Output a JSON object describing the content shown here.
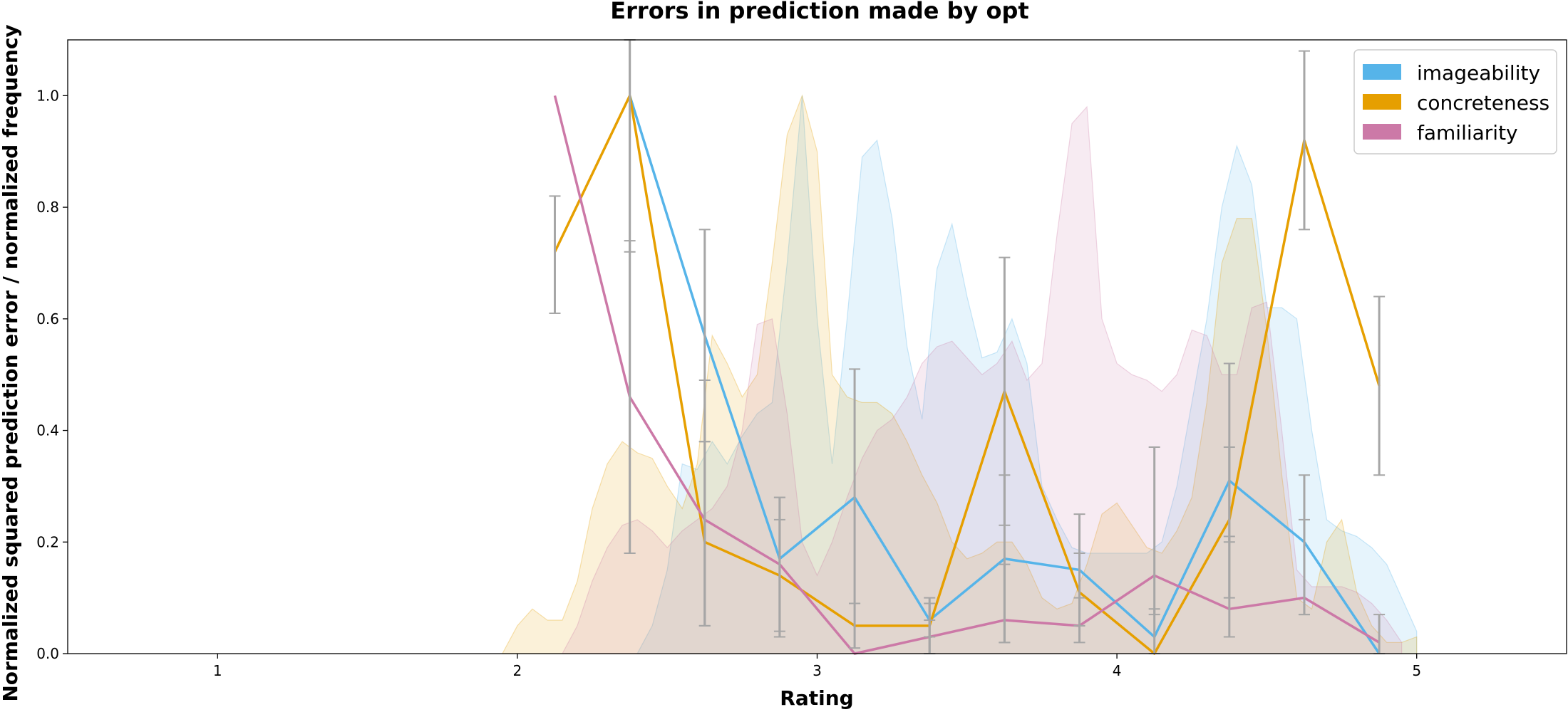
{
  "chart_data": {
    "type": "line",
    "title": "Errors in prediction made by opt",
    "xlabel": "Rating",
    "ylabel": "Normalized squared prediction error / normalized frequency",
    "xlim": [
      0.5,
      5.5
    ],
    "ylim": [
      0,
      1.1
    ],
    "xticks": [
      "1",
      "2",
      "3",
      "4",
      "5"
    ],
    "yticks": [
      "0.0",
      "0.2",
      "0.4",
      "0.6",
      "0.8",
      "1.0"
    ],
    "legend_position": "top-right",
    "grid": false,
    "error_color": "#a6a6a6",
    "series": [
      {
        "name": "imageability",
        "color": "#56b4e9",
        "x": [
          2.375,
          2.625,
          2.875,
          3.125,
          3.375,
          3.625,
          3.875,
          4.125,
          4.375,
          4.625,
          4.875
        ],
        "values": [
          1.0,
          0.57,
          0.17,
          0.28,
          0.06,
          0.17,
          0.15,
          0.03,
          0.31,
          0.2,
          0.0
        ],
        "err_low": [
          0.72,
          0.38,
          0.04,
          0.09,
          0.03,
          0.02,
          0.05,
          0.0,
          0.2,
          0.07,
          0.0
        ],
        "err_high": [
          1.1,
          0.76,
          0.28,
          0.51,
          0.09,
          0.32,
          0.25,
          0.08,
          0.52,
          0.32,
          0.0
        ],
        "density": [
          [
            2.4,
            0.0
          ],
          [
            2.45,
            0.05
          ],
          [
            2.5,
            0.15
          ],
          [
            2.55,
            0.34
          ],
          [
            2.6,
            0.33
          ],
          [
            2.65,
            0.38
          ],
          [
            2.7,
            0.34
          ],
          [
            2.75,
            0.39
          ],
          [
            2.8,
            0.43
          ],
          [
            2.85,
            0.45
          ],
          [
            2.9,
            0.7
          ],
          [
            2.95,
            1.0
          ],
          [
            3.0,
            0.6
          ],
          [
            3.05,
            0.34
          ],
          [
            3.1,
            0.6
          ],
          [
            3.15,
            0.89
          ],
          [
            3.2,
            0.92
          ],
          [
            3.25,
            0.78
          ],
          [
            3.3,
            0.55
          ],
          [
            3.35,
            0.42
          ],
          [
            3.4,
            0.69
          ],
          [
            3.45,
            0.77
          ],
          [
            3.5,
            0.64
          ],
          [
            3.55,
            0.53
          ],
          [
            3.6,
            0.54
          ],
          [
            3.65,
            0.6
          ],
          [
            3.7,
            0.52
          ],
          [
            3.75,
            0.3
          ],
          [
            3.8,
            0.24
          ],
          [
            3.85,
            0.19
          ],
          [
            3.9,
            0.18
          ],
          [
            3.95,
            0.18
          ],
          [
            4.0,
            0.18
          ],
          [
            4.05,
            0.18
          ],
          [
            4.1,
            0.18
          ],
          [
            4.15,
            0.2
          ],
          [
            4.2,
            0.3
          ],
          [
            4.25,
            0.45
          ],
          [
            4.3,
            0.6
          ],
          [
            4.35,
            0.8
          ],
          [
            4.4,
            0.91
          ],
          [
            4.45,
            0.84
          ],
          [
            4.5,
            0.62
          ],
          [
            4.55,
            0.62
          ],
          [
            4.6,
            0.6
          ],
          [
            4.65,
            0.4
          ],
          [
            4.7,
            0.24
          ],
          [
            4.75,
            0.22
          ],
          [
            4.8,
            0.21
          ],
          [
            4.85,
            0.19
          ],
          [
            4.9,
            0.16
          ],
          [
            4.95,
            0.1
          ],
          [
            5.0,
            0.04
          ]
        ]
      },
      {
        "name": "concreteness",
        "color": "#e69f00",
        "x": [
          2.125,
          2.375,
          2.625,
          2.875,
          3.125,
          3.375,
          3.625,
          3.875,
          4.125,
          4.375,
          4.625,
          4.875
        ],
        "values": [
          0.72,
          1.0,
          0.2,
          0.14,
          0.05,
          0.05,
          0.47,
          0.11,
          0.0,
          0.24,
          0.92,
          0.48
        ],
        "err_low": [
          0.61,
          0.18,
          0.05,
          0.03,
          0.01,
          0.0,
          0.23,
          0.05,
          0.0,
          0.1,
          0.76,
          0.32
        ],
        "err_high": [
          0.82,
          1.1,
          0.49,
          0.24,
          0.09,
          0.1,
          0.71,
          0.18,
          0.0,
          0.37,
          1.08,
          0.64
        ],
        "density": [
          [
            1.95,
            0.0
          ],
          [
            2.0,
            0.05
          ],
          [
            2.05,
            0.08
          ],
          [
            2.1,
            0.06
          ],
          [
            2.15,
            0.06
          ],
          [
            2.2,
            0.13
          ],
          [
            2.25,
            0.26
          ],
          [
            2.3,
            0.34
          ],
          [
            2.35,
            0.38
          ],
          [
            2.4,
            0.36
          ],
          [
            2.45,
            0.35
          ],
          [
            2.5,
            0.3
          ],
          [
            2.55,
            0.26
          ],
          [
            2.6,
            0.34
          ],
          [
            2.65,
            0.57
          ],
          [
            2.7,
            0.52
          ],
          [
            2.75,
            0.46
          ],
          [
            2.8,
            0.5
          ],
          [
            2.85,
            0.7
          ],
          [
            2.9,
            0.93
          ],
          [
            2.95,
            1.0
          ],
          [
            3.0,
            0.9
          ],
          [
            3.05,
            0.5
          ],
          [
            3.1,
            0.46
          ],
          [
            3.15,
            0.45
          ],
          [
            3.2,
            0.45
          ],
          [
            3.25,
            0.43
          ],
          [
            3.3,
            0.38
          ],
          [
            3.35,
            0.32
          ],
          [
            3.4,
            0.27
          ],
          [
            3.45,
            0.2
          ],
          [
            3.5,
            0.17
          ],
          [
            3.55,
            0.18
          ],
          [
            3.6,
            0.2
          ],
          [
            3.65,
            0.2
          ],
          [
            3.7,
            0.16
          ],
          [
            3.75,
            0.1
          ],
          [
            3.8,
            0.08
          ],
          [
            3.85,
            0.09
          ],
          [
            3.9,
            0.16
          ],
          [
            3.95,
            0.25
          ],
          [
            4.0,
            0.27
          ],
          [
            4.05,
            0.23
          ],
          [
            4.1,
            0.19
          ],
          [
            4.15,
            0.18
          ],
          [
            4.2,
            0.22
          ],
          [
            4.25,
            0.28
          ],
          [
            4.3,
            0.45
          ],
          [
            4.35,
            0.7
          ],
          [
            4.4,
            0.78
          ],
          [
            4.45,
            0.78
          ],
          [
            4.5,
            0.58
          ],
          [
            4.55,
            0.32
          ],
          [
            4.6,
            0.1
          ],
          [
            4.65,
            0.08
          ],
          [
            4.7,
            0.2
          ],
          [
            4.75,
            0.24
          ],
          [
            4.8,
            0.11
          ],
          [
            4.85,
            0.05
          ],
          [
            4.9,
            0.02
          ],
          [
            4.95,
            0.02
          ],
          [
            5.0,
            0.03
          ]
        ]
      },
      {
        "name": "familiarity",
        "color": "#cc79a7",
        "x": [
          2.125,
          2.375,
          2.625,
          2.875,
          3.125,
          3.375,
          3.625,
          3.875,
          4.125,
          4.375,
          4.625,
          4.875
        ],
        "values": [
          1.0,
          0.46,
          0.24,
          0.16,
          0.0,
          0.03,
          0.06,
          0.05,
          0.14,
          0.08,
          0.1,
          0.02
        ],
        "err_low": [
          1.0,
          0.18,
          0.05,
          0.03,
          0.0,
          0.0,
          0.02,
          0.02,
          0.07,
          0.03,
          0.07,
          0.0
        ],
        "err_high": [
          1.0,
          0.74,
          0.38,
          0.28,
          0.0,
          0.06,
          0.16,
          0.1,
          0.37,
          0.21,
          0.24,
          0.07
        ],
        "density": [
          [
            2.15,
            0.0
          ],
          [
            2.2,
            0.05
          ],
          [
            2.25,
            0.13
          ],
          [
            2.3,
            0.19
          ],
          [
            2.35,
            0.23
          ],
          [
            2.4,
            0.24
          ],
          [
            2.45,
            0.22
          ],
          [
            2.5,
            0.19
          ],
          [
            2.55,
            0.22
          ],
          [
            2.6,
            0.24
          ],
          [
            2.65,
            0.26
          ],
          [
            2.7,
            0.3
          ],
          [
            2.75,
            0.4
          ],
          [
            2.8,
            0.59
          ],
          [
            2.85,
            0.6
          ],
          [
            2.9,
            0.43
          ],
          [
            2.95,
            0.2
          ],
          [
            3.0,
            0.14
          ],
          [
            3.05,
            0.2
          ],
          [
            3.1,
            0.28
          ],
          [
            3.15,
            0.35
          ],
          [
            3.2,
            0.4
          ],
          [
            3.25,
            0.42
          ],
          [
            3.3,
            0.46
          ],
          [
            3.35,
            0.52
          ],
          [
            3.4,
            0.55
          ],
          [
            3.45,
            0.56
          ],
          [
            3.5,
            0.53
          ],
          [
            3.55,
            0.5
          ],
          [
            3.6,
            0.52
          ],
          [
            3.65,
            0.56
          ],
          [
            3.7,
            0.49
          ],
          [
            3.75,
            0.52
          ],
          [
            3.8,
            0.75
          ],
          [
            3.85,
            0.95
          ],
          [
            3.9,
            0.98
          ],
          [
            3.95,
            0.6
          ],
          [
            4.0,
            0.52
          ],
          [
            4.05,
            0.5
          ],
          [
            4.1,
            0.49
          ],
          [
            4.15,
            0.47
          ],
          [
            4.2,
            0.5
          ],
          [
            4.25,
            0.58
          ],
          [
            4.3,
            0.57
          ],
          [
            4.35,
            0.5
          ],
          [
            4.4,
            0.5
          ],
          [
            4.45,
            0.62
          ],
          [
            4.5,
            0.63
          ],
          [
            4.55,
            0.4
          ],
          [
            4.6,
            0.15
          ],
          [
            4.65,
            0.12
          ],
          [
            4.7,
            0.12
          ],
          [
            4.75,
            0.12
          ],
          [
            4.8,
            0.11
          ],
          [
            4.85,
            0.09
          ],
          [
            4.9,
            0.06
          ],
          [
            4.95,
            0.02
          ]
        ]
      }
    ]
  }
}
